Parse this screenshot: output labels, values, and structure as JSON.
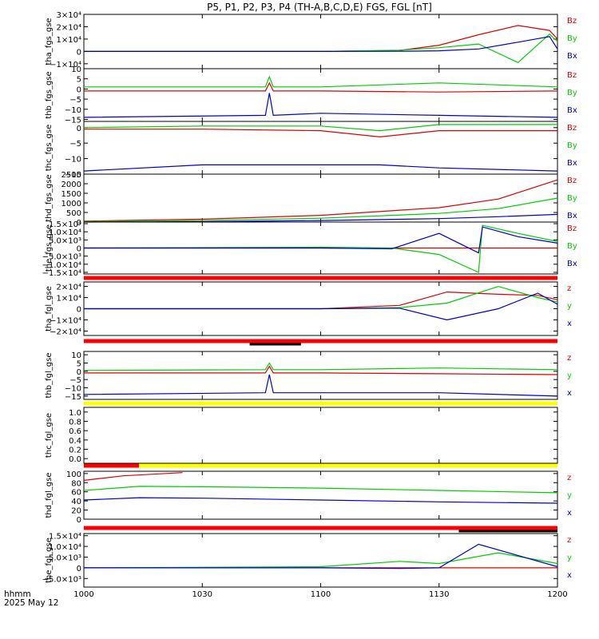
{
  "title": "P5, P1, P2, P3, P4 (TH-A,B,C,D,E) FGS, FGL [nT]",
  "footer": {
    "line1": "hhmm",
    "line2": "2025 May 12"
  },
  "colors": {
    "x": "#0000cc",
    "y": "#00cc00",
    "z": "#dd0000",
    "frame": "#000000",
    "bar_red": "#ff0000",
    "bar_yellow": "#ffff00",
    "bar_black": "#000000"
  },
  "chart_data": {
    "type": "line",
    "xaxis": {
      "range": [
        0,
        120
      ],
      "ticks": [
        0,
        30,
        60,
        90,
        120
      ],
      "ticklabels": [
        "1000",
        "1030",
        "1100",
        "1130",
        "1200"
      ]
    },
    "panels": [
      {
        "ylabel": "tha_fgs_gse",
        "ylim": [
          -14000,
          30000
        ],
        "yticks": [
          -10000,
          0,
          10000,
          20000,
          30000
        ],
        "yticklabels": [
          "−1×10⁴",
          "0",
          "1×10⁴",
          "2×10⁴",
          "3×10⁴"
        ],
        "legend": [
          "Bz",
          "By",
          "Bx"
        ],
        "status_bar": [],
        "series": [
          {
            "component": "z",
            "x": [
              0,
              40,
              60,
              80,
              90,
              100,
              110,
              118,
              120
            ],
            "values": [
              0,
              0,
              0,
              800,
              5000,
              13500,
              21000,
              17000,
              10000
            ]
          },
          {
            "component": "y",
            "x": [
              0,
              40,
              60,
              80,
              90,
              100,
              110,
              118,
              120
            ],
            "values": [
              0,
              0,
              0,
              1000,
              3000,
              6000,
              -9000,
              14000,
              8000
            ]
          },
          {
            "component": "x",
            "x": [
              0,
              40,
              60,
              80,
              90,
              100,
              110,
              118,
              120
            ],
            "values": [
              0,
              0,
              0,
              100,
              500,
              2000,
              7500,
              12000,
              2000
            ]
          }
        ]
      },
      {
        "ylabel": "thb_fgs_gse",
        "ylim": [
          -16,
          10
        ],
        "yticks": [
          -15,
          -10,
          -5,
          0,
          5,
          10
        ],
        "yticklabels": [
          "−15",
          "−10",
          "−5",
          "0",
          "5",
          "10"
        ],
        "legend": [
          "Bz",
          "By",
          "Bx"
        ],
        "status_bar": [],
        "series": [
          {
            "component": "z",
            "x": [
              0,
              46,
              47,
              48,
              60,
              90,
              120
            ],
            "values": [
              -1,
              -1,
              3,
              -1,
              -1,
              -1.5,
              -1
            ]
          },
          {
            "component": "y",
            "x": [
              0,
              46,
              47,
              48,
              60,
              90,
              120
            ],
            "values": [
              1,
              1,
              6,
              1,
              1,
              3,
              1
            ]
          },
          {
            "component": "x",
            "x": [
              0,
              46,
              47,
              48,
              60,
              90,
              120
            ],
            "values": [
              -14,
              -13,
              -2,
              -13,
              -12,
              -13,
              -14
            ]
          }
        ]
      },
      {
        "ylabel": "thc_fgs_gse",
        "ylim": [
          -15,
          2
        ],
        "yticks": [
          -15,
          -10,
          -5,
          0
        ],
        "yticklabels": [
          "−15",
          "−10",
          "−5",
          "0"
        ],
        "legend": [
          "Bz",
          "By",
          "Bx"
        ],
        "status_bar": [],
        "series": [
          {
            "component": "z",
            "x": [
              0,
              30,
              60,
              75,
              90,
              120
            ],
            "values": [
              -0.5,
              -0.5,
              -1,
              -3,
              -1,
              -1
            ]
          },
          {
            "component": "y",
            "x": [
              0,
              30,
              60,
              75,
              90,
              120
            ],
            "values": [
              0,
              0.5,
              0.5,
              -1,
              1,
              1
            ]
          },
          {
            "component": "x",
            "x": [
              0,
              30,
              60,
              75,
              90,
              120
            ],
            "values": [
              -14,
              -12,
              -12,
              -12,
              -13,
              -14
            ]
          }
        ]
      },
      {
        "ylabel": "thd_fgs_gse",
        "ylim": [
          0,
          2500
        ],
        "yticks": [
          0,
          500,
          1000,
          1500,
          2000,
          2500
        ],
        "yticklabels": [
          "0",
          "500",
          "1000",
          "1500",
          "2000",
          "2500"
        ],
        "legend": [
          "Bz",
          "By",
          "Bx"
        ],
        "status_bar": [],
        "series": [
          {
            "component": "z",
            "x": [
              0,
              30,
              60,
              90,
              105,
              120
            ],
            "values": [
              50,
              150,
              350,
              750,
              1200,
              2200
            ]
          },
          {
            "component": "y",
            "x": [
              0,
              30,
              60,
              90,
              105,
              120
            ],
            "values": [
              20,
              80,
              200,
              450,
              700,
              1250
            ]
          },
          {
            "component": "x",
            "x": [
              0,
              30,
              60,
              90,
              105,
              120
            ],
            "values": [
              0,
              20,
              80,
              180,
              280,
              400
            ]
          }
        ]
      },
      {
        "ylabel": "the_fgs_gse",
        "ylim": [
          -16000,
          16000
        ],
        "yticks": [
          -15000,
          -10000,
          -5000,
          0,
          5000,
          10000,
          15000
        ],
        "yticklabels": [
          "−1.5×10⁴",
          "−1.0×10⁴",
          "−5.0×10³",
          "0",
          "5.0×10³",
          "1.0×10⁴",
          "1.5×10⁴"
        ],
        "legend": [
          "Bz",
          "By",
          "Bx"
        ],
        "status_bar": [],
        "series": [
          {
            "component": "z",
            "x": [
              0,
              60,
              78,
              90,
              100,
              101,
              110,
              120
            ],
            "values": [
              0,
              0,
              0,
              0,
              0,
              0,
              0,
              0
            ]
          },
          {
            "component": "y",
            "x": [
              0,
              60,
              78,
              90,
              100,
              101,
              110,
              120
            ],
            "values": [
              0,
              500,
              0,
              -4000,
              -15000,
              14000,
              9000,
              4000
            ]
          },
          {
            "component": "x",
            "x": [
              0,
              60,
              78,
              90,
              100,
              101,
              110,
              120
            ],
            "values": [
              0,
              0,
              -500,
              9000,
              -3000,
              13000,
              7000,
              3000
            ]
          }
        ]
      },
      {
        "ylabel": "tha_fgl_gse",
        "ylim": [
          -24000,
          24000
        ],
        "yticks": [
          -20000,
          -10000,
          0,
          10000,
          20000
        ],
        "yticklabels": [
          "−2×10⁴",
          "−1×10⁴",
          "0",
          "1×10⁴",
          "2×10⁴"
        ],
        "legend": [
          "z",
          "y",
          "x"
        ],
        "status_bar": [
          {
            "x0": 0,
            "x1": 120,
            "color": "red"
          }
        ],
        "series": [
          {
            "component": "z",
            "x": [
              0,
              60,
              80,
              92,
              105,
              115,
              120
            ],
            "values": [
              0,
              0,
              3000,
              15000,
              13000,
              12000,
              8000
            ]
          },
          {
            "component": "y",
            "x": [
              0,
              60,
              80,
              92,
              105,
              115,
              120
            ],
            "values": [
              0,
              0,
              1000,
              5000,
              20000,
              10000,
              6000
            ]
          },
          {
            "component": "x",
            "x": [
              0,
              60,
              80,
              92,
              105,
              115,
              120
            ],
            "values": [
              0,
              0,
              500,
              -10000,
              0,
              14000,
              4000
            ]
          }
        ]
      },
      {
        "ylabel": "thb_fgl_gse",
        "ylim": [
          -17,
          12
        ],
        "yticks": [
          -15,
          -10,
          -5,
          0,
          5,
          10
        ],
        "yticklabels": [
          "−15",
          "−10",
          "−5",
          "0",
          "5",
          "10"
        ],
        "legend": [
          "z",
          "y",
          "x"
        ],
        "status_bar": [
          {
            "x0": 0,
            "x1": 120,
            "color": "red"
          },
          {
            "x0": 42,
            "x1": 55,
            "color": "black"
          }
        ],
        "series": [
          {
            "component": "z",
            "x": [
              0,
              46,
              47,
              48,
              60,
              90,
              120
            ],
            "values": [
              -1,
              -1,
              3,
              -1,
              -1,
              -1.5,
              -2
            ]
          },
          {
            "component": "y",
            "x": [
              0,
              46,
              47,
              48,
              60,
              90,
              120
            ],
            "values": [
              0.5,
              1,
              5,
              1,
              1,
              2,
              1
            ]
          },
          {
            "component": "x",
            "x": [
              0,
              46,
              47,
              48,
              60,
              90,
              120
            ],
            "values": [
              -14,
              -13,
              -2,
              -13,
              -13,
              -13,
              -15
            ]
          }
        ]
      },
      {
        "ylabel": "thc_fgl_gse",
        "ylim": [
          -0.1,
          1.1
        ],
        "yticks": [
          0,
          0.2,
          0.4,
          0.6,
          0.8,
          1.0
        ],
        "yticklabels": [
          "0.0",
          "0.2",
          "0.4",
          "0.6",
          "0.8",
          "1.0"
        ],
        "legend": [],
        "status_bar": [
          {
            "x0": 0,
            "x1": 120,
            "color": "yellow"
          }
        ],
        "series": []
      },
      {
        "ylabel": "thd_fgl_gse",
        "ylim": [
          0,
          105
        ],
        "yticks": [
          0,
          20,
          40,
          60,
          80,
          100
        ],
        "yticklabels": [
          "0",
          "20",
          "40",
          "60",
          "80",
          "100"
        ],
        "legend": [
          "z",
          "y",
          "x"
        ],
        "status_bar": [
          {
            "x0": 0,
            "x1": 14,
            "color": "red"
          },
          {
            "x0": 14,
            "x1": 120,
            "color": "yellow"
          }
        ],
        "series": [
          {
            "component": "z",
            "x": [
              0,
              10,
              25
            ],
            "values": [
              85,
              95,
              102
            ]
          },
          {
            "component": "y",
            "x": [
              0,
              14,
              30,
              60,
              90,
              120
            ],
            "values": [
              63,
              72,
              71,
              68,
              63,
              58
            ]
          },
          {
            "component": "x",
            "x": [
              0,
              14,
              30,
              60,
              90,
              120
            ],
            "values": [
              42,
              47,
              46,
              42,
              38,
              35
            ]
          }
        ]
      },
      {
        "ylabel": "the_fgl_gse",
        "ylim": [
          -9000,
          16000
        ],
        "yticks": [
          -5000,
          0,
          5000,
          10000,
          15000
        ],
        "yticklabels": [
          "−5.0×10³",
          "0",
          "5.0×10³",
          "1.0×10⁴",
          "1.5×10⁴"
        ],
        "legend": [
          "z",
          "y",
          "x"
        ],
        "status_bar": [
          {
            "x0": 0,
            "x1": 120,
            "color": "red"
          },
          {
            "x0": 95,
            "x1": 120,
            "color": "black"
          }
        ],
        "series": [
          {
            "component": "z",
            "x": [
              0,
              60,
              120
            ],
            "values": [
              0,
              0,
              0
            ]
          },
          {
            "component": "y",
            "x": [
              0,
              60,
              80,
              90,
              105,
              120
            ],
            "values": [
              0,
              500,
              3000,
              2000,
              7000,
              2000
            ]
          },
          {
            "component": "x",
            "x": [
              0,
              60,
              80,
              90,
              100,
              120
            ],
            "values": [
              0,
              0,
              -300,
              0,
              11000,
              500
            ]
          }
        ]
      }
    ]
  }
}
